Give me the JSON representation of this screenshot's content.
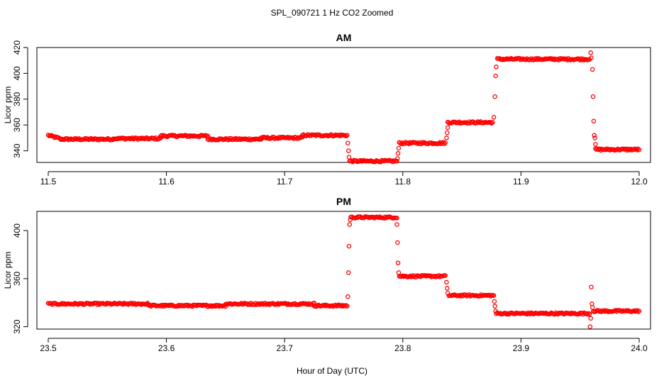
{
  "figure": {
    "title": "SPL_090721  1 Hz CO2 Zoomed",
    "xlabel": "Hour of Day (UTC)"
  },
  "colors": {
    "points": "#ff0000",
    "axis": "#000000",
    "background": "#ffffff"
  },
  "chart_data": [
    {
      "type": "scatter",
      "title": "AM",
      "xlabel": "Hour of Day (UTC)",
      "ylabel": "Licor ppm",
      "xlim": [
        11.5,
        12.0
      ],
      "ylim": [
        331,
        420
      ],
      "x_ticks": [
        "11.5",
        "11.6",
        "11.7",
        "11.8",
        "11.9",
        "12.0"
      ],
      "y_ticks": [
        "340",
        "360",
        "380",
        "400",
        "420"
      ],
      "grid": false,
      "marker": "open-circle",
      "series": [
        {
          "segments": [
            {
              "x": [
                11.5,
                11.51
              ],
              "y": [
                352,
                349.5
              ]
            },
            {
              "x": [
                11.51,
                11.555
              ],
              "y": [
                349,
                349
              ]
            },
            {
              "x": [
                11.555,
                11.595
              ],
              "y": [
                349.5,
                349.5
              ]
            },
            {
              "x": [
                11.595,
                11.635
              ],
              "y": [
                351.5,
                351.5
              ]
            },
            {
              "x": [
                11.635,
                11.68
              ],
              "y": [
                349,
                349
              ]
            },
            {
              "x": [
                11.68,
                11.715
              ],
              "y": [
                350,
                350
              ]
            },
            {
              "x": [
                11.715,
                11.753
              ],
              "y": [
                352,
                352
              ]
            },
            {
              "x": [
                11.755,
                11.795
              ],
              "y": [
                332,
                332
              ]
            },
            {
              "x": [
                11.797,
                11.836
              ],
              "y": [
                346,
                346
              ]
            },
            {
              "x": [
                11.838,
                11.876
              ],
              "y": [
                362,
                362
              ]
            },
            {
              "x": [
                11.88,
                11.958
              ],
              "y": [
                411,
                411
              ]
            },
            {
              "x": [
                11.963,
                12.0
              ],
              "y": [
                341,
                341
              ]
            }
          ],
          "transition_points": [
            {
              "x": 11.7535,
              "y": 346
            },
            {
              "x": 11.754,
              "y": 340
            },
            {
              "x": 11.7545,
              "y": 335
            },
            {
              "x": 11.7955,
              "y": 334
            },
            {
              "x": 11.796,
              "y": 338
            },
            {
              "x": 11.7965,
              "y": 342
            },
            {
              "x": 11.837,
              "y": 350
            },
            {
              "x": 11.8375,
              "y": 354
            },
            {
              "x": 11.838,
              "y": 358
            },
            {
              "x": 11.877,
              "y": 366
            },
            {
              "x": 11.878,
              "y": 382
            },
            {
              "x": 11.8785,
              "y": 398
            },
            {
              "x": 11.879,
              "y": 405
            },
            {
              "x": 11.959,
              "y": 416
            },
            {
              "x": 11.9595,
              "y": 412
            },
            {
              "x": 11.9605,
              "y": 403
            },
            {
              "x": 11.961,
              "y": 382
            },
            {
              "x": 11.9615,
              "y": 363
            },
            {
              "x": 11.962,
              "y": 352
            },
            {
              "x": 11.9625,
              "y": 350
            },
            {
              "x": 11.963,
              "y": 345
            }
          ]
        }
      ]
    },
    {
      "type": "scatter",
      "title": "PM",
      "xlabel": "Hour of Day (UTC)",
      "ylabel": "Licor ppm",
      "xlim": [
        23.5,
        24.0
      ],
      "ylim": [
        318,
        416
      ],
      "x_ticks": [
        "23.5",
        "23.6",
        "23.7",
        "23.8",
        "23.9",
        "24.0"
      ],
      "y_ticks": [
        "320",
        "360",
        "400"
      ],
      "grid": false,
      "marker": "open-circle",
      "series": [
        {
          "segments": [
            {
              "x": [
                23.5,
                23.585
              ],
              "y": [
                339,
                339
              ]
            },
            {
              "x": [
                23.585,
                23.65
              ],
              "y": [
                337.5,
                337.5
              ]
            },
            {
              "x": [
                23.65,
                23.725
              ],
              "y": [
                339,
                339
              ]
            },
            {
              "x": [
                23.725,
                23.753
              ],
              "y": [
                337.5,
                337.5
              ]
            },
            {
              "x": [
                23.756,
                23.795
              ],
              "y": [
                411,
                411
              ]
            },
            {
              "x": [
                23.797,
                23.836
              ],
              "y": [
                362,
                362
              ]
            },
            {
              "x": [
                23.839,
                23.877
              ],
              "y": [
                346,
                346
              ]
            },
            {
              "x": [
                23.879,
                23.958
              ],
              "y": [
                331,
                331
              ]
            },
            {
              "x": [
                23.961,
                24.0
              ],
              "y": [
                333,
                333
              ]
            }
          ],
          "transition_points": [
            {
              "x": 23.7535,
              "y": 345
            },
            {
              "x": 23.754,
              "y": 365
            },
            {
              "x": 23.7545,
              "y": 387
            },
            {
              "x": 23.755,
              "y": 405
            },
            {
              "x": 23.7555,
              "y": 409
            },
            {
              "x": 23.795,
              "y": 405
            },
            {
              "x": 23.7955,
              "y": 390
            },
            {
              "x": 23.796,
              "y": 373
            },
            {
              "x": 23.7965,
              "y": 365
            },
            {
              "x": 23.837,
              "y": 357
            },
            {
              "x": 23.8375,
              "y": 352
            },
            {
              "x": 23.838,
              "y": 348
            },
            {
              "x": 23.8775,
              "y": 341
            },
            {
              "x": 23.878,
              "y": 337
            },
            {
              "x": 23.8785,
              "y": 333
            },
            {
              "x": 23.9585,
              "y": 320
            },
            {
              "x": 23.959,
              "y": 327
            },
            {
              "x": 23.9595,
              "y": 353
            },
            {
              "x": 23.96,
              "y": 339
            },
            {
              "x": 23.9605,
              "y": 336
            }
          ]
        }
      ]
    }
  ]
}
